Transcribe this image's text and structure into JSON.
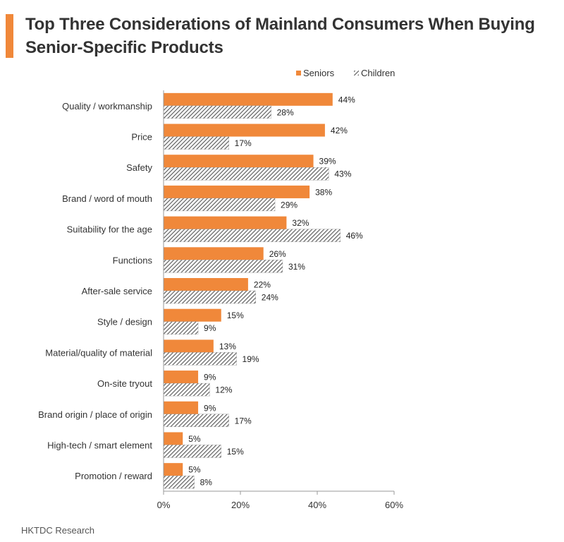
{
  "title": "Top Three Considerations of Mainland Consumers When Buying Senior-Specific Products",
  "source": "HKTDC Research",
  "colors": {
    "accent": "#f0883a",
    "seniors": "#f0883a",
    "children_stripe": "#555555",
    "axis": "#999999",
    "text": "#333333"
  },
  "chart_data": {
    "type": "bar",
    "orientation": "horizontal",
    "title": "Top Three Considerations of Mainland Consumers When Buying Senior-Specific Products",
    "categories": [
      "Quality / workmanship",
      "Price",
      "Safety",
      "Brand / word of mouth",
      "Suitability for the age",
      "Functions",
      "After-sale service",
      "Style / design",
      "Material/quality of material",
      "On-site tryout",
      "Brand origin / place of origin",
      "High-tech / smart element",
      "Promotion / reward"
    ],
    "series": [
      {
        "name": "Seniors",
        "values": [
          44,
          42,
          39,
          38,
          32,
          26,
          22,
          15,
          13,
          9,
          9,
          5,
          5
        ],
        "color": "#f0883a",
        "pattern": "solid"
      },
      {
        "name": "Children",
        "values": [
          28,
          17,
          43,
          29,
          46,
          31,
          24,
          9,
          19,
          12,
          17,
          15,
          8
        ],
        "color": "#555555",
        "pattern": "diagonal-hatch"
      }
    ],
    "value_labels": {
      "Seniors": [
        "44%",
        "42%",
        "39%",
        "38%",
        "32%",
        "26%",
        "22%",
        "15%",
        "13%",
        "9%",
        "9%",
        "5%",
        "5%"
      ],
      "Children": [
        "28%",
        "17%",
        "43%",
        "29%",
        "46%",
        "31%",
        "24%",
        "9%",
        "19%",
        "12%",
        "17%",
        "15%",
        "8%"
      ]
    },
    "xlim": [
      0,
      60
    ],
    "xticks": [
      0,
      20,
      40,
      60
    ],
    "xtick_labels": [
      "0%",
      "20%",
      "40%",
      "60%"
    ],
    "xlabel": "",
    "ylabel": "",
    "grid": false,
    "legend": {
      "position": "top-right",
      "entries": [
        "Seniors",
        "Children"
      ]
    }
  }
}
